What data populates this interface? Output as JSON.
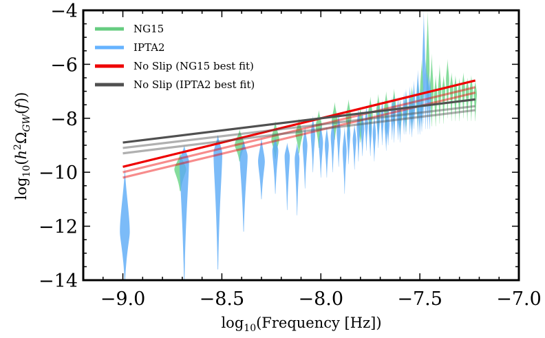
{
  "chart_data": {
    "type": "line",
    "xlabel": "log10(Frequency [Hz])",
    "ylabel": "log10(h²ΩGW(f))",
    "xlim": [
      -9.2,
      -7.0
    ],
    "ylim": [
      -14,
      -4
    ],
    "xticks": [
      -9.0,
      -8.5,
      -8.0,
      -7.5,
      -7.0
    ],
    "xtick_labels": [
      "−9.0",
      "−8.5",
      "−8.0",
      "−7.5",
      "−7.0"
    ],
    "yticks": [
      -14,
      -12,
      -10,
      -8,
      -6,
      -4
    ],
    "ytick_labels": [
      "−14",
      "−12",
      "−10",
      "−8",
      "−6",
      "−4"
    ],
    "grid": false,
    "legend_position": "top-left",
    "legend": [
      {
        "label": "NG15",
        "color": "#66cc80"
      },
      {
        "label": "IPTA2",
        "color": "#66b3ff"
      },
      {
        "label": "No Slip (NG15 best fit)",
        "color": "#ee0000"
      },
      {
        "label": "No Slip (IPTA2 best fit)",
        "color": "#505050"
      }
    ],
    "violins": {
      "NG15": {
        "color": "#33c45a",
        "opacity": 0.6,
        "x": [
          -8.71,
          -8.41,
          -8.23,
          -8.11,
          -8.01,
          -7.93,
          -7.86,
          -7.8,
          -7.75,
          -7.71,
          -7.67,
          -7.63,
          -7.6,
          -7.57,
          -7.54,
          -7.51,
          -7.49,
          -7.46,
          -7.44,
          -7.42,
          -7.4,
          -7.38,
          -7.36,
          -7.34,
          -7.32,
          -7.3,
          -7.28,
          -7.26,
          -7.24,
          -7.22
        ],
        "center": [
          -9.9,
          -9.0,
          -8.8,
          -8.6,
          -8.3,
          -8.1,
          -8.0,
          -8.2,
          -7.9,
          -7.8,
          -7.7,
          -7.6,
          -7.9,
          -7.7,
          -7.6,
          -7.4,
          -7.0,
          -6.2,
          -7.0,
          -7.2,
          -7.0,
          -7.0,
          -6.6,
          -6.9,
          -7.0,
          -7.1,
          -6.9,
          -7.0,
          -7.0,
          -7.1
        ],
        "top": [
          -9.3,
          -8.4,
          -8.1,
          -8.0,
          -7.7,
          -7.4,
          -7.3,
          -7.6,
          -7.2,
          -7.1,
          -7.0,
          -6.9,
          -7.3,
          -7.0,
          -6.8,
          -6.6,
          -5.8,
          -4.0,
          -5.6,
          -6.4,
          -6.0,
          -6.4,
          -5.8,
          -6.3,
          -6.4,
          -6.5,
          -6.3,
          -6.5,
          -6.4,
          -6.6
        ],
        "bottom": [
          -10.7,
          -9.6,
          -9.5,
          -9.3,
          -9.1,
          -8.8,
          -8.8,
          -8.9,
          -8.7,
          -8.6,
          -8.6,
          -8.4,
          -8.6,
          -8.5,
          -8.4,
          -8.4,
          -8.3,
          -8.0,
          -8.3,
          -8.3,
          -8.2,
          -8.2,
          -8.0,
          -8.1,
          -8.1,
          -8.1,
          -8.0,
          -8.1,
          -8.1,
          -8.1
        ],
        "half_width": [
          0.03,
          0.025,
          0.02,
          0.018,
          0.016,
          0.015,
          0.014,
          0.013,
          0.012,
          0.011,
          0.011,
          0.01,
          0.01,
          0.01,
          0.01,
          0.009,
          0.009,
          0.009,
          0.009,
          0.008,
          0.008,
          0.008,
          0.008,
          0.008,
          0.008,
          0.008,
          0.008,
          0.008,
          0.008,
          0.008
        ]
      },
      "IPTA2": {
        "color": "#5aaaf6",
        "opacity": 0.8,
        "x": [
          -8.99,
          -8.69,
          -8.52,
          -8.39,
          -8.3,
          -8.23,
          -8.17,
          -8.12,
          -8.08,
          -8.04,
          -8.0,
          -7.97,
          -7.94,
          -7.91,
          -7.88,
          -7.86,
          -7.83,
          -7.81,
          -7.79,
          -7.77,
          -7.75,
          -7.73,
          -7.71,
          -7.69,
          -7.67,
          -7.66,
          -7.64,
          -7.63,
          -7.61,
          -7.6,
          -7.58,
          -7.57,
          -7.55,
          -7.54,
          -7.53,
          -7.51,
          -7.5,
          -7.49,
          -7.48,
          -7.47,
          -7.46,
          -7.45
        ],
        "center": [
          -12.2,
          -9.6,
          -9.3,
          -9.4,
          -9.6,
          -9.2,
          -9.4,
          -9.5,
          -9.0,
          -8.6,
          -8.9,
          -9.0,
          -8.7,
          -8.5,
          -9.2,
          -8.6,
          -8.8,
          -8.3,
          -8.4,
          -8.2,
          -8.4,
          -8.6,
          -8.1,
          -8.0,
          -8.3,
          -8.2,
          -7.9,
          -7.8,
          -7.9,
          -8.0,
          -7.8,
          -7.7,
          -7.6,
          -7.9,
          -7.5,
          -7.2,
          -7.8,
          -7.6,
          -6.0,
          -6.8,
          -7.0,
          -7.2
        ],
        "top": [
          -9.8,
          -9.0,
          -8.6,
          -8.8,
          -8.7,
          -8.7,
          -8.9,
          -8.9,
          -8.3,
          -7.9,
          -8.2,
          -8.3,
          -8.0,
          -7.8,
          -8.3,
          -7.9,
          -8.2,
          -7.6,
          -7.7,
          -7.5,
          -7.6,
          -7.8,
          -7.4,
          -7.3,
          -7.6,
          -7.4,
          -7.2,
          -7.1,
          -7.2,
          -7.3,
          -7.0,
          -6.9,
          -6.8,
          -7.2,
          -6.6,
          -6.2,
          -6.9,
          -6.8,
          -4.0,
          -5.8,
          -6.2,
          -6.4
        ],
        "bottom": [
          -14.0,
          -14.0,
          -13.6,
          -12.2,
          -11.0,
          -10.8,
          -11.4,
          -11.6,
          -10.6,
          -10.0,
          -10.2,
          -10.2,
          -10.0,
          -9.8,
          -10.8,
          -9.7,
          -9.9,
          -9.6,
          -9.4,
          -9.2,
          -9.4,
          -9.6,
          -9.1,
          -9.0,
          -9.2,
          -9.0,
          -8.8,
          -8.9,
          -8.8,
          -8.9,
          -8.6,
          -8.6,
          -8.6,
          -8.7,
          -8.4,
          -8.6,
          -8.6,
          -8.5,
          -8.2,
          -8.4,
          -8.4,
          -8.4
        ],
        "half_width": [
          0.025,
          0.024,
          0.022,
          0.02,
          0.017,
          0.015,
          0.013,
          0.012,
          0.012,
          0.011,
          0.011,
          0.01,
          0.01,
          0.01,
          0.01,
          0.009,
          0.009,
          0.009,
          0.009,
          0.008,
          0.008,
          0.008,
          0.008,
          0.008,
          0.008,
          0.007,
          0.007,
          0.007,
          0.007,
          0.007,
          0.007,
          0.007,
          0.007,
          0.007,
          0.007,
          0.007,
          0.007,
          0.007,
          0.007,
          0.007,
          0.007,
          0.007
        ]
      }
    },
    "series": [
      {
        "name": "No Slip (NG15 best fit)",
        "color": "#ee0000",
        "opacity": 1.0,
        "width": 3.2,
        "x": [
          -9.0,
          -7.22
        ],
        "y": [
          -9.8,
          -6.6
        ]
      },
      {
        "color": "#ee0000",
        "opacity": 0.45,
        "width": 3.2,
        "x": [
          -9.0,
          -7.22
        ],
        "y": [
          -10.0,
          -6.85
        ]
      },
      {
        "color": "#ee0000",
        "opacity": 0.45,
        "width": 3.2,
        "x": [
          -9.0,
          -7.22
        ],
        "y": [
          -10.2,
          -7.05
        ]
      },
      {
        "name": "No Slip (IPTA2 best fit)",
        "color": "#505050",
        "opacity": 1.0,
        "width": 3.2,
        "x": [
          -9.0,
          -7.22
        ],
        "y": [
          -8.9,
          -7.3
        ]
      },
      {
        "color": "#505050",
        "opacity": 0.45,
        "width": 3.2,
        "x": [
          -9.0,
          -7.22
        ],
        "y": [
          -9.1,
          -7.55
        ]
      },
      {
        "color": "#505050",
        "opacity": 0.45,
        "width": 3.2,
        "x": [
          -9.0,
          -7.22
        ],
        "y": [
          -9.3,
          -7.7
        ]
      }
    ]
  }
}
